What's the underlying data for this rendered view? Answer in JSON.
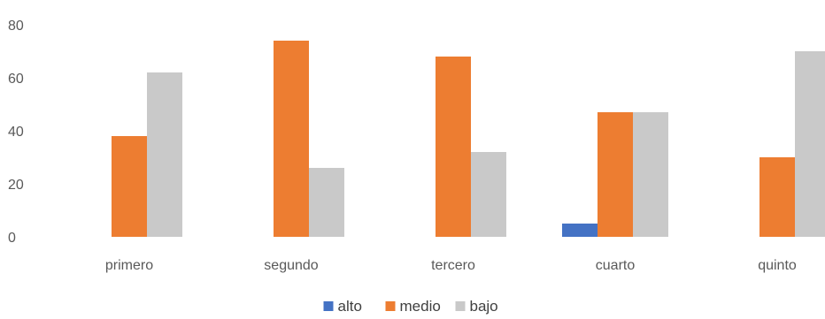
{
  "chart_data": {
    "type": "bar",
    "categories": [
      "primero",
      "segundo",
      "tercero",
      "cuarto",
      "quinto"
    ],
    "series": [
      {
        "name": "alto",
        "color": "#4472C4",
        "values": [
          0,
          0,
          0,
          5,
          0
        ]
      },
      {
        "name": "medio",
        "color": "#ED7D31",
        "values": [
          38,
          74,
          68,
          47,
          30
        ]
      },
      {
        "name": "bajo",
        "color": "#C9C9C9",
        "values": [
          62,
          26,
          32,
          47,
          70
        ]
      }
    ],
    "yticks": [
      "0",
      "20",
      "40",
      "60",
      "80"
    ],
    "ylim": [
      0,
      80
    ],
    "grid": false,
    "legend": "bottom"
  }
}
